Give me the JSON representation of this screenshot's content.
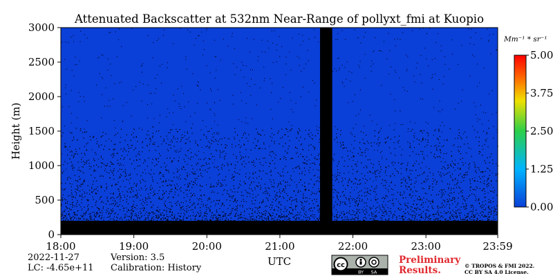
{
  "chart_data": {
    "type": "heatmap",
    "title": "Attenuated Backscatter at 532nm Near-Range of pollyxt_fmi at Kuopio",
    "xlabel": "UTC",
    "ylabel": "Height (m)",
    "x_ticks": [
      "18:00",
      "19:00",
      "20:00",
      "21:00",
      "22:00",
      "23:00",
      "23:59"
    ],
    "x_range_hours": [
      18.0,
      23.983
    ],
    "y_ticks": [
      0,
      500,
      1000,
      1500,
      2000,
      2500,
      3000
    ],
    "ylim": [
      0,
      3000
    ],
    "colorbar": {
      "unit_label": "Mm⁻¹ * sr⁻¹",
      "ticks": [
        "0.00",
        "1.25",
        "2.50",
        "3.75",
        "5.00"
      ],
      "range": [
        0,
        5.0
      ],
      "colormap": [
        "#0a3fd8",
        "#00b4ff",
        "#2ccf4a",
        "#f0e000",
        "#ff6a00",
        "#ff0000"
      ]
    },
    "background_color": "#0a3fd8",
    "no_data_color": "#000000",
    "data_gap": {
      "start": "21:33",
      "end": "21:43"
    },
    "near_surface_layer": {
      "height_range_m": [
        0,
        200
      ],
      "value": "low (black)"
    },
    "dense_signal_top_m": 400
  },
  "footer": {
    "date": "2022-11-27",
    "lc": "LC: -4.65e+11",
    "version": "Version: 3.5",
    "calibration": "Calibration: History",
    "license_badge": [
      "BY",
      "SA"
    ],
    "preliminary_line1": "Preliminary",
    "preliminary_line2": "Results.",
    "copyright_line1": "© TROPOS & FMI 2022.",
    "copyright_line2": "CC BY SA 4.0 License."
  }
}
